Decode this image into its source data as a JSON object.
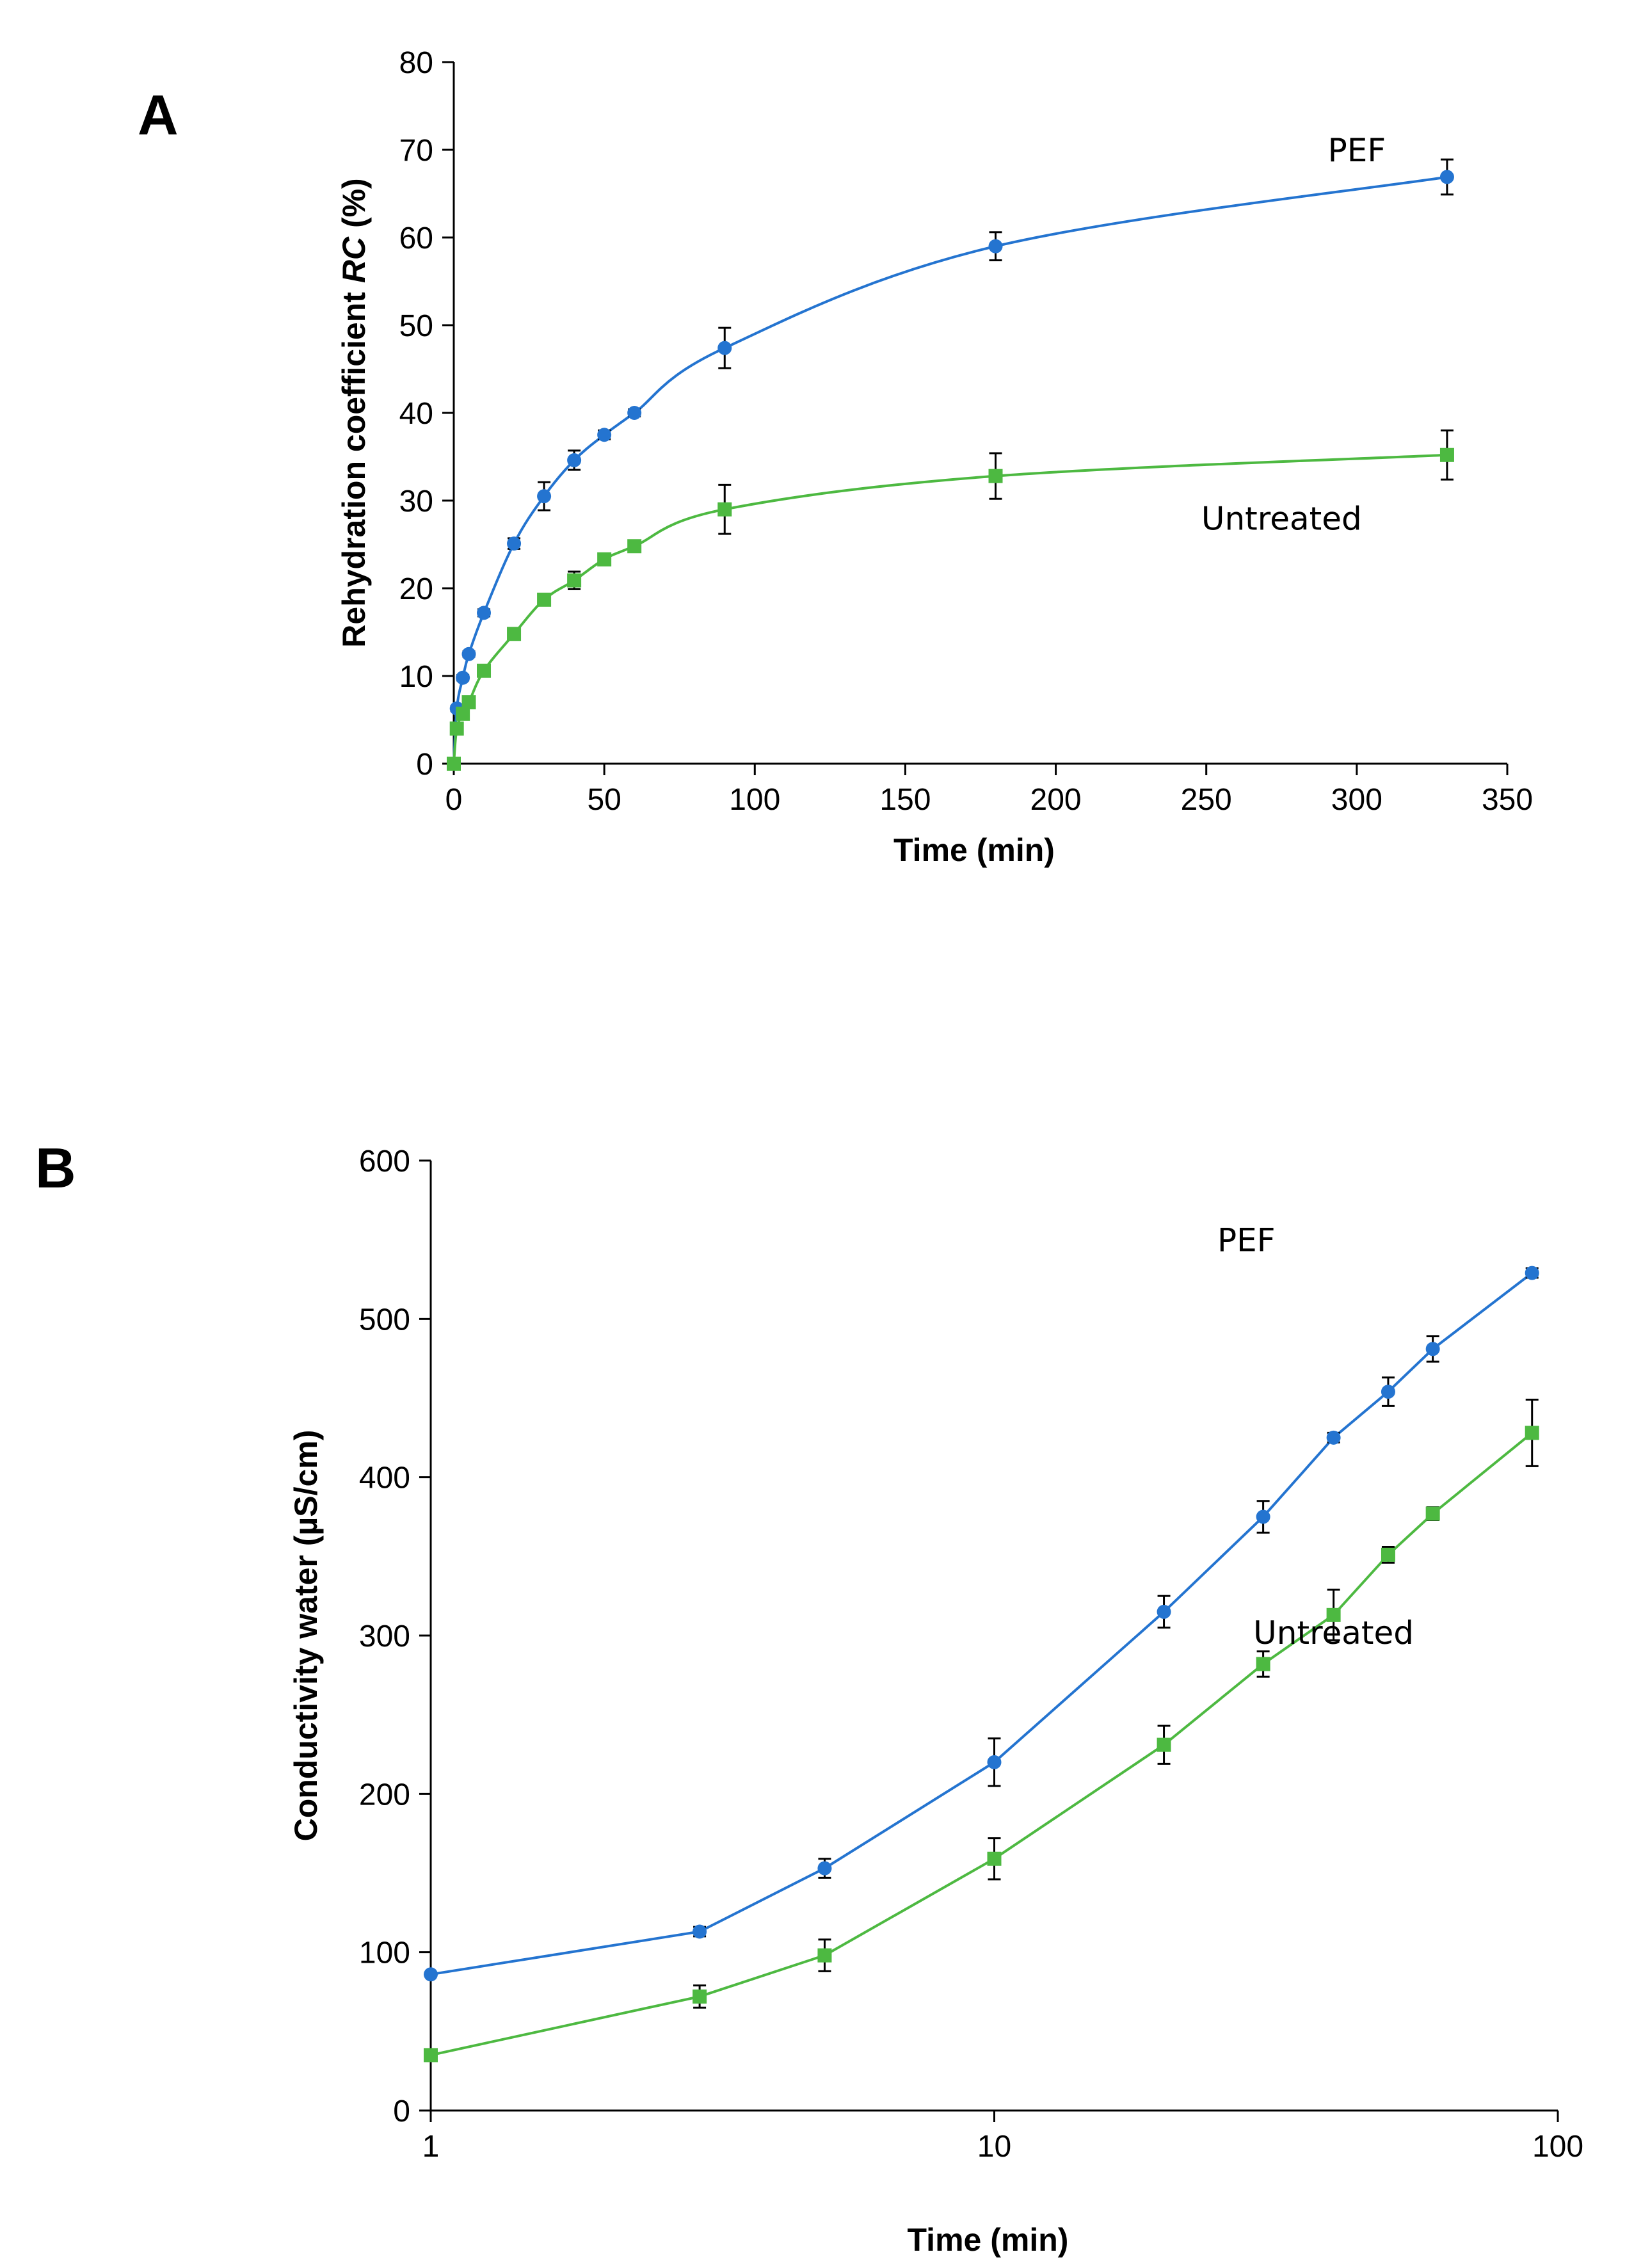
{
  "chart_data": [
    {
      "panel": "A",
      "type": "line",
      "xlabel": "Time (min)",
      "ylabel_parts": [
        "Rehydration coefficient ",
        "RC",
        " (%)"
      ],
      "xlim": [
        0,
        350
      ],
      "ylim": [
        0,
        80
      ],
      "xticks": [
        0,
        50,
        100,
        150,
        200,
        250,
        300,
        350
      ],
      "yticks": [
        0,
        10,
        20,
        30,
        40,
        50,
        60,
        70,
        80
      ],
      "x_scale": "linear",
      "grid": false,
      "series": [
        {
          "name": "PEF",
          "color": "#2474D0",
          "marker": "circle",
          "label_at": [
            300,
            70
          ],
          "points": [
            {
              "x": 0,
              "y": 0,
              "err": 0
            },
            {
              "x": 1,
              "y": 6.3,
              "err": 0.3
            },
            {
              "x": 3,
              "y": 9.8,
              "err": 0.3
            },
            {
              "x": 5,
              "y": 12.5,
              "err": 0.3
            },
            {
              "x": 10,
              "y": 17.2,
              "err": 0.4
            },
            {
              "x": 20,
              "y": 25.1,
              "err": 0.6
            },
            {
              "x": 30,
              "y": 30.5,
              "err": 1.6
            },
            {
              "x": 40,
              "y": 34.6,
              "err": 1.1
            },
            {
              "x": 50,
              "y": 37.5,
              "err": 0.5
            },
            {
              "x": 60,
              "y": 40.0,
              "err": 0.4
            },
            {
              "x": 90,
              "y": 47.4,
              "err": 2.3
            },
            {
              "x": 180,
              "y": 59.0,
              "err": 1.6
            },
            {
              "x": 330,
              "y": 66.9,
              "err": 2.0
            }
          ]
        },
        {
          "name": "Untreated",
          "color": "#4DB941",
          "marker": "square",
          "label_at": [
            275,
            28
          ],
          "points": [
            {
              "x": 0,
              "y": 0,
              "err": 0
            },
            {
              "x": 1,
              "y": 4.0,
              "err": 0.3
            },
            {
              "x": 3,
              "y": 5.7,
              "err": 0.3
            },
            {
              "x": 5,
              "y": 7.0,
              "err": 0.3
            },
            {
              "x": 10,
              "y": 10.6,
              "err": 0.4
            },
            {
              "x": 20,
              "y": 14.8,
              "err": 0.5
            },
            {
              "x": 30,
              "y": 18.7,
              "err": 0.6
            },
            {
              "x": 40,
              "y": 20.9,
              "err": 1.0
            },
            {
              "x": 50,
              "y": 23.3,
              "err": 0.5
            },
            {
              "x": 60,
              "y": 24.8,
              "err": 0.4
            },
            {
              "x": 90,
              "y": 29.0,
              "err": 2.8
            },
            {
              "x": 180,
              "y": 32.8,
              "err": 2.6
            },
            {
              "x": 330,
              "y": 35.2,
              "err": 2.8
            }
          ]
        }
      ]
    },
    {
      "panel": "B",
      "type": "line",
      "xlabel": "Time (min)",
      "ylabel_parts": [
        "Conductivity water (µS/cm)"
      ],
      "xlim": [
        1,
        100
      ],
      "ylim": [
        0,
        600
      ],
      "xticks": [
        1,
        10,
        100
      ],
      "yticks": [
        0,
        100,
        200,
        300,
        400,
        500,
        600
      ],
      "x_scale": "log",
      "grid": false,
      "series": [
        {
          "name": "PEF",
          "color": "#2474D0",
          "marker": "circle",
          "label_at": [
            28,
            550
          ],
          "points": [
            {
              "x": 1,
              "y": 86,
              "err": 0
            },
            {
              "x": 3,
              "y": 113,
              "err": 3
            },
            {
              "x": 5,
              "y": 153,
              "err": 6
            },
            {
              "x": 10,
              "y": 220,
              "err": 15
            },
            {
              "x": 20,
              "y": 315,
              "err": 10
            },
            {
              "x": 30,
              "y": 375,
              "err": 10
            },
            {
              "x": 40,
              "y": 425,
              "err": 3
            },
            {
              "x": 50,
              "y": 454,
              "err": 9
            },
            {
              "x": 60,
              "y": 481,
              "err": 8
            },
            {
              "x": 90,
              "y": 529,
              "err": 3
            }
          ]
        },
        {
          "name": "Untreated",
          "color": "#4DB941",
          "marker": "square",
          "label_at": [
            40,
            302
          ],
          "points": [
            {
              "x": 1,
              "y": 35,
              "err": 0
            },
            {
              "x": 3,
              "y": 72,
              "err": 7
            },
            {
              "x": 5,
              "y": 98,
              "err": 10
            },
            {
              "x": 10,
              "y": 159,
              "err": 13
            },
            {
              "x": 20,
              "y": 231,
              "err": 12
            },
            {
              "x": 30,
              "y": 282,
              "err": 8
            },
            {
              "x": 40,
              "y": 313,
              "err": 16
            },
            {
              "x": 50,
              "y": 351,
              "err": 5
            },
            {
              "x": 60,
              "y": 377,
              "err": 4
            },
            {
              "x": 90,
              "y": 428,
              "err": 21
            }
          ]
        }
      ]
    }
  ]
}
